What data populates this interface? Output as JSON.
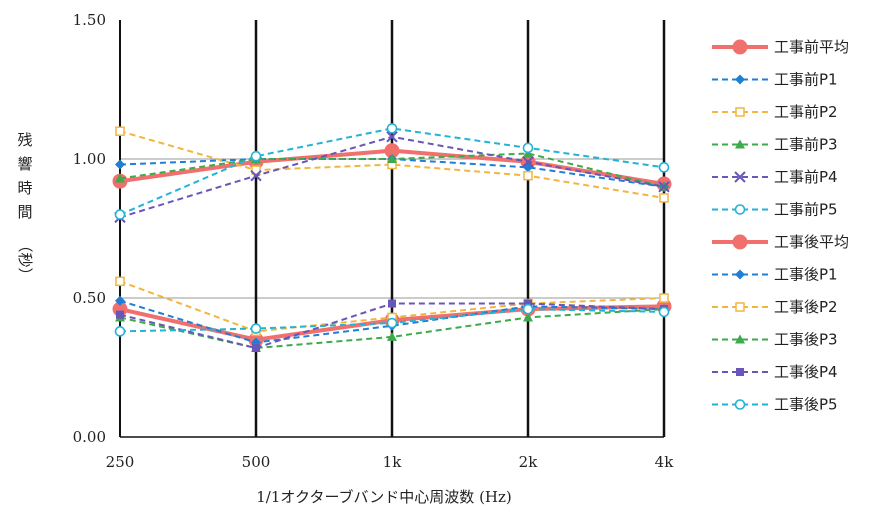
{
  "chart_data": {
    "type": "line",
    "title": "",
    "xlabel": "1/1オクターブバンド中心周波数 (Hz)",
    "ylabel": "残響時間（秒）",
    "ylabel_chars": [
      "残",
      "響",
      "時",
      "間",
      "（秒）"
    ],
    "categories": [
      "250",
      "500",
      "1k",
      "2k",
      "4k"
    ],
    "ylim": [
      0,
      1.5
    ],
    "yticks": [
      0,
      0.5,
      1.0,
      1.5
    ],
    "ytick_labels": [
      "0.00",
      "0.50",
      "1.00",
      "1.50"
    ],
    "grid": "vertical lines at each frequency band; horizontal lines at 0.50 and 1.00",
    "legend_position": "right",
    "series": [
      {
        "name": "工事前平均",
        "values": [
          0.92,
          0.99,
          1.03,
          0.99,
          0.91
        ],
        "color": "#f0706e",
        "dash": "solid",
        "marker": "circle-filled",
        "bold": true
      },
      {
        "name": "工事前P1",
        "values": [
          0.98,
          1.0,
          1.0,
          0.97,
          0.9
        ],
        "color": "#1e7fd4",
        "dash": "dashed",
        "marker": "diamond-filled"
      },
      {
        "name": "工事前P2",
        "values": [
          1.1,
          0.96,
          0.98,
          0.94,
          0.86
        ],
        "color": "#f2b640",
        "dash": "dashed",
        "marker": "square-open"
      },
      {
        "name": "工事前P3",
        "values": [
          0.93,
          1.0,
          1.0,
          1.02,
          0.9
        ],
        "color": "#3daa4b",
        "dash": "dashed",
        "marker": "triangle-filled"
      },
      {
        "name": "工事前P4",
        "values": [
          0.79,
          0.94,
          1.08,
          0.99,
          0.9
        ],
        "color": "#6a55b8",
        "dash": "dashed",
        "marker": "x"
      },
      {
        "name": "工事前P5",
        "values": [
          0.8,
          1.01,
          1.11,
          1.04,
          0.97
        ],
        "color": "#22b3d6",
        "dash": "dashed",
        "marker": "circle-open"
      },
      {
        "name": "工事後平均",
        "values": [
          0.46,
          0.35,
          0.42,
          0.46,
          0.47
        ],
        "color": "#f0706e",
        "dash": "solid",
        "marker": "circle-filled",
        "bold": true
      },
      {
        "name": "工事後P1",
        "values": [
          0.49,
          0.34,
          0.4,
          0.47,
          0.46
        ],
        "color": "#1e7fd4",
        "dash": "dashed",
        "marker": "diamond-filled"
      },
      {
        "name": "工事後P2",
        "values": [
          0.56,
          0.38,
          0.43,
          0.48,
          0.5
        ],
        "color": "#f2b640",
        "dash": "dashed",
        "marker": "square-open"
      },
      {
        "name": "工事後P3",
        "values": [
          0.43,
          0.32,
          0.36,
          0.43,
          0.46
        ],
        "color": "#3daa4b",
        "dash": "dashed",
        "marker": "triangle-filled"
      },
      {
        "name": "工事後P4",
        "values": [
          0.44,
          0.32,
          0.48,
          0.48,
          0.46
        ],
        "color": "#6a55b8",
        "dash": "dashed",
        "marker": "square-filled"
      },
      {
        "name": "工事後P5",
        "values": [
          0.38,
          0.39,
          0.41,
          0.46,
          0.45
        ],
        "color": "#22b3d6",
        "dash": "dashed",
        "marker": "circle-open"
      }
    ]
  }
}
